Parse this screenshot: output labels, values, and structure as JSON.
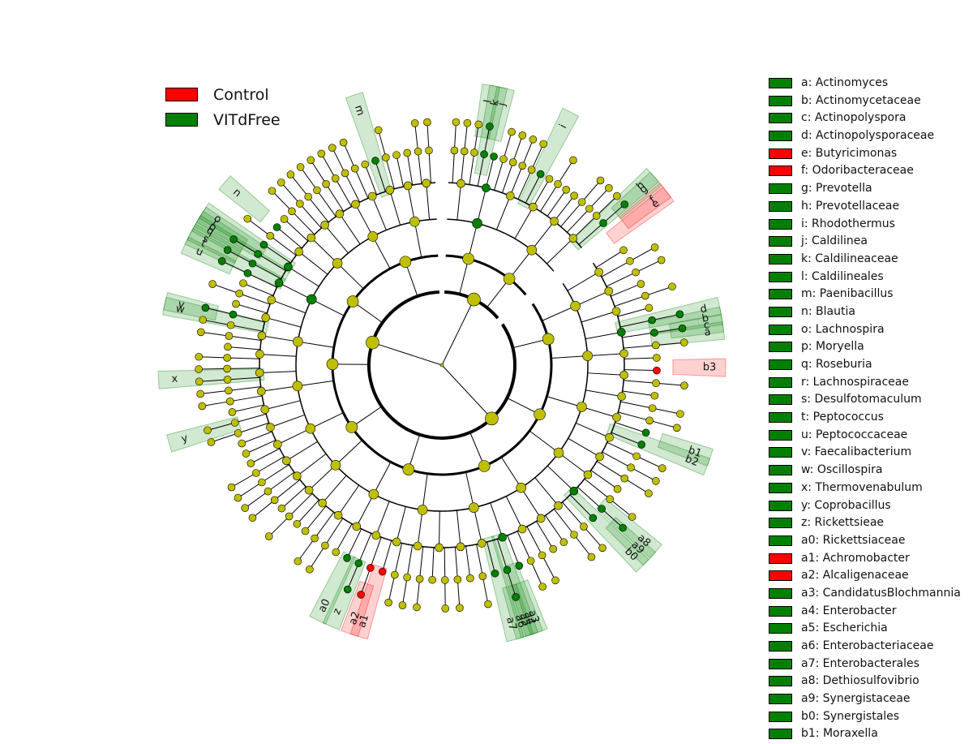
{
  "colors": {
    "control": "#ff0000",
    "enriched": "#008000",
    "node": "#bfbf00",
    "edge": "#000000"
  },
  "groups": [
    {
      "label": "Control",
      "color": "#ff0000"
    },
    {
      "label": "VITdFree",
      "color": "#008000"
    }
  ],
  "taxa": [
    {
      "label": "a: Actinomyces",
      "color": "#008000"
    },
    {
      "label": "b: Actinomycetaceae",
      "color": "#008000"
    },
    {
      "label": "c: Actinopolyspora",
      "color": "#008000"
    },
    {
      "label": "d: Actinopolysporaceae",
      "color": "#008000"
    },
    {
      "label": "e: Butyricimonas",
      "color": "#ff0000"
    },
    {
      "label": "f: Odoribacteraceae",
      "color": "#ff0000"
    },
    {
      "label": "g: Prevotella",
      "color": "#008000"
    },
    {
      "label": "h: Prevotellaceae",
      "color": "#008000"
    },
    {
      "label": "i: Rhodothermus",
      "color": "#008000"
    },
    {
      "label": "j: Caldilinea",
      "color": "#008000"
    },
    {
      "label": "k: Caldilineaceae",
      "color": "#008000"
    },
    {
      "label": "l: Caldilineales",
      "color": "#008000"
    },
    {
      "label": "m: Paenibacillus",
      "color": "#008000"
    },
    {
      "label": "n: Blautia",
      "color": "#008000"
    },
    {
      "label": "o: Lachnospira",
      "color": "#008000"
    },
    {
      "label": "p: Moryella",
      "color": "#008000"
    },
    {
      "label": "q: Roseburia",
      "color": "#008000"
    },
    {
      "label": "r: Lachnospiraceae",
      "color": "#008000"
    },
    {
      "label": "s: Desulfotomaculum",
      "color": "#008000"
    },
    {
      "label": "t: Peptococcus",
      "color": "#008000"
    },
    {
      "label": "u: Peptococcaceae",
      "color": "#008000"
    },
    {
      "label": "v: Faecalibacterium",
      "color": "#008000"
    },
    {
      "label": "w: Oscillospira",
      "color": "#008000"
    },
    {
      "label": "x: Thermovenabulum",
      "color": "#008000"
    },
    {
      "label": "y: Coprobacillus",
      "color": "#008000"
    },
    {
      "label": "z: Rickettsieae",
      "color": "#008000"
    },
    {
      "label": "a0: Rickettsiaceae",
      "color": "#008000"
    },
    {
      "label": "a1: Achromobacter",
      "color": "#ff0000"
    },
    {
      "label": "a2: Alcaligenaceae",
      "color": "#ff0000"
    },
    {
      "label": "a3: CandidatusBlochmannia",
      "color": "#008000"
    },
    {
      "label": "a4: Enterobacter",
      "color": "#008000"
    },
    {
      "label": "a5: Escherichia",
      "color": "#008000"
    },
    {
      "label": "a6: Enterobacteriaceae",
      "color": "#008000"
    },
    {
      "label": "a7: Enterobacterales",
      "color": "#008000"
    },
    {
      "label": "a8: Dethiosulfovibrio",
      "color": "#008000"
    },
    {
      "label": "a9: Synergistaceae",
      "color": "#008000"
    },
    {
      "label": "b0: Synergistales",
      "color": "#008000"
    },
    {
      "label": "b1: Moraxella",
      "color": "#008000"
    }
  ],
  "clades": [
    {
      "code": "l",
      "angle": 80,
      "group": "VITdFree"
    },
    {
      "code": "k",
      "angle": 78.5,
      "group": "VITdFree"
    },
    {
      "code": "j",
      "angle": 77,
      "group": "VITdFree"
    },
    {
      "code": "i",
      "angle": 63,
      "group": "VITdFree"
    },
    {
      "code": "h",
      "angle": 42,
      "group": "VITdFree"
    },
    {
      "code": "g",
      "angle": 41,
      "group": "VITdFree"
    },
    {
      "code": "f",
      "angle": 38,
      "group": "Control"
    },
    {
      "code": "e",
      "angle": 37,
      "group": "Control"
    },
    {
      "code": "d",
      "angle": 12,
      "group": "VITdFree"
    },
    {
      "code": "b",
      "angle": 10,
      "group": "VITdFree"
    },
    {
      "code": "c",
      "angle": 8.5,
      "group": "VITdFree"
    },
    {
      "code": "a",
      "angle": 7,
      "group": "VITdFree"
    },
    {
      "code": "b3",
      "angle": -0.5,
      "group": "Control"
    },
    {
      "code": "b1",
      "angle": -19,
      "group": "VITdFree"
    },
    {
      "code": "b2",
      "angle": -21,
      "group": "VITdFree"
    },
    {
      "code": "a8",
      "angle": -41,
      "group": "VITdFree"
    },
    {
      "code": "a9",
      "angle": -43,
      "group": "VITdFree"
    },
    {
      "code": "b0",
      "angle": -45,
      "group": "VITdFree"
    },
    {
      "code": "a3",
      "angle": -70,
      "group": "VITdFree"
    },
    {
      "code": "a4",
      "angle": -71,
      "group": "VITdFree"
    },
    {
      "code": "a5",
      "angle": -72,
      "group": "VITdFree"
    },
    {
      "code": "a6",
      "angle": -73,
      "group": "VITdFree"
    },
    {
      "code": "a7",
      "angle": -75,
      "group": "VITdFree"
    },
    {
      "code": "a1",
      "angle": -107,
      "group": "Control"
    },
    {
      "code": "a2",
      "angle": -109,
      "group": "Control"
    },
    {
      "code": "z",
      "angle": -113,
      "group": "VITdFree"
    },
    {
      "code": "a0",
      "angle": -116,
      "group": "VITdFree"
    },
    {
      "code": "y",
      "angle": -164,
      "group": "VITdFree"
    },
    {
      "code": "x",
      "angle": -177,
      "group": "VITdFree"
    },
    {
      "code": "w",
      "angle": 168,
      "group": "VITdFree"
    },
    {
      "code": "v",
      "angle": 167,
      "group": "VITdFree"
    },
    {
      "code": "u",
      "angle": 155,
      "group": "VITdFree"
    },
    {
      "code": "t",
      "angle": 153,
      "group": "VITdFree"
    },
    {
      "code": "s",
      "angle": 152,
      "group": "VITdFree"
    },
    {
      "code": "q",
      "angle": 150,
      "group": "VITdFree"
    },
    {
      "code": "p",
      "angle": 149,
      "group": "VITdFree"
    },
    {
      "code": "o",
      "angle": 147,
      "group": "VITdFree"
    },
    {
      "code": "r",
      "angle": 148,
      "group": "VITdFree"
    },
    {
      "code": "n",
      "angle": 140,
      "group": "VITdFree"
    },
    {
      "code": "m",
      "angle": 108,
      "group": "VITdFree"
    }
  ]
}
